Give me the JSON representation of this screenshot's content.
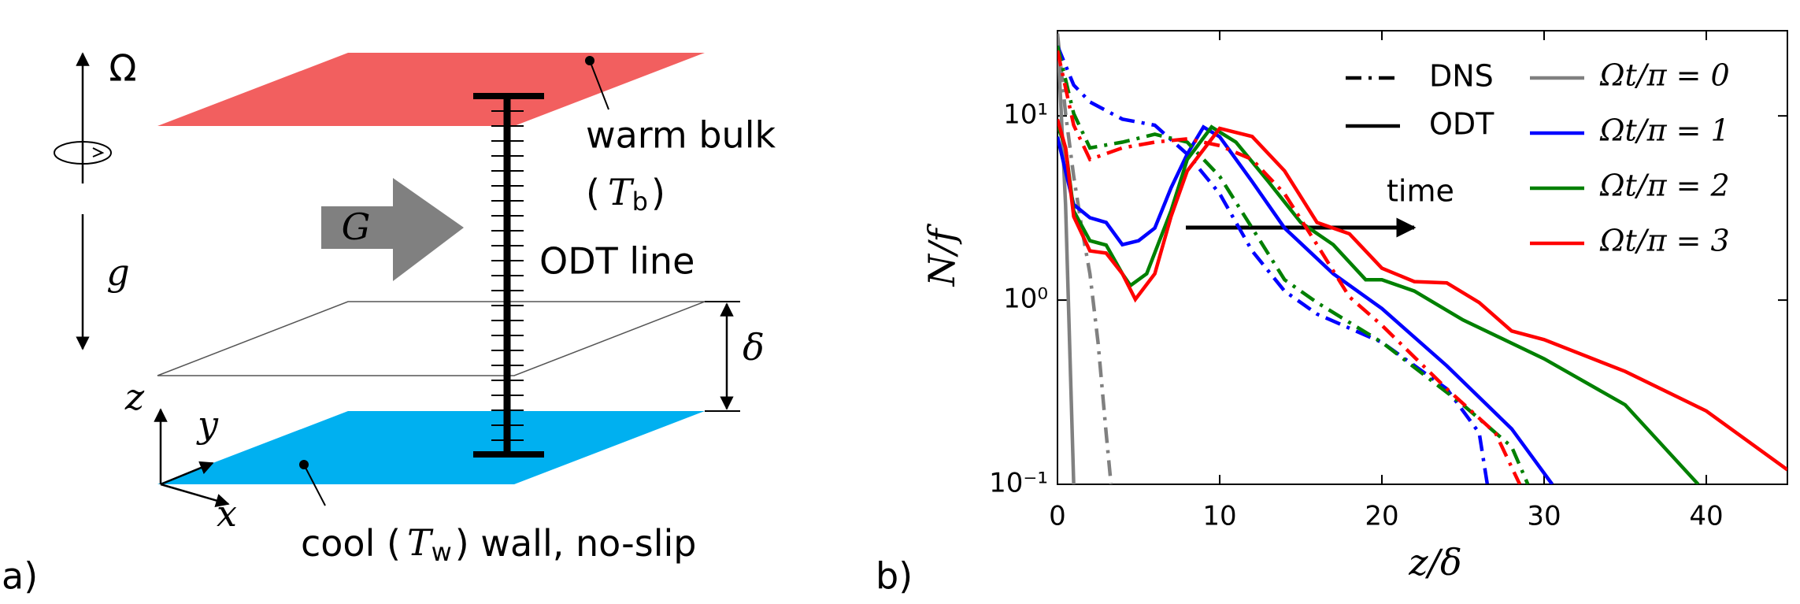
{
  "diagram": {
    "panel_label": "a)",
    "omega": "Ω",
    "gravity": "g",
    "forcing": "G",
    "delta": "δ",
    "axis_z": "z",
    "axis_y": "y",
    "axis_x": "x",
    "warm_label": "warm bulk",
    "warm_temp": [
      "(",
      "T",
      "b",
      ")"
    ],
    "odt_label": "ODT line",
    "cool_label": [
      "cool (",
      "T",
      "w",
      ") wall, no-slip"
    ]
  },
  "chart_data": {
    "type": "line",
    "panel_label": "b)",
    "xlabel": "z/δ",
    "ylabel": "N/f",
    "annotation": "time",
    "log_y": true,
    "xlim": [
      0,
      45
    ],
    "ylim": [
      0.1,
      29
    ],
    "xticks": [
      0,
      10,
      20,
      30,
      40
    ],
    "yticks": [
      {
        "value": 0.1,
        "label": "10⁻¹"
      },
      {
        "value": 1,
        "label": "10⁰"
      },
      {
        "value": 10,
        "label": "10¹"
      }
    ],
    "legend": {
      "styles": [
        {
          "label": "DNS",
          "style": "dashdot"
        },
        {
          "label": "ODT",
          "style": "solid"
        }
      ],
      "colors": [
        {
          "label": "Ωt/π = 0",
          "color": "#808080"
        },
        {
          "label": "Ωt/π = 1",
          "color": "#0000ff"
        },
        {
          "label": "Ωt/π = 2",
          "color": "#008000"
        },
        {
          "label": "Ωt/π = 3",
          "color": "#ff0000"
        }
      ]
    },
    "series": [
      {
        "style": "dashdot",
        "color": "#808080",
        "x": [
          0,
          0.5,
          1,
          1.5,
          2,
          2.5,
          3,
          3.3
        ],
        "values": [
          28,
          10.3,
          4.7,
          2.46,
          1.39,
          0.59,
          0.19,
          0.1
        ]
      },
      {
        "style": "solid",
        "color": "#808080",
        "x": [
          0,
          0.5,
          1
        ],
        "values": [
          28,
          3.27,
          0.1
        ]
      },
      {
        "style": "dashdot",
        "color": "#0000ff",
        "x": [
          0,
          1,
          2,
          4,
          6,
          8,
          10,
          12,
          14,
          16,
          20,
          24,
          26,
          26.5
        ],
        "values": [
          24,
          14.7,
          11.9,
          9.6,
          8.9,
          6.2,
          3.78,
          1.85,
          1.12,
          0.84,
          0.59,
          0.33,
          0.19,
          0.1
        ]
      },
      {
        "style": "solid",
        "color": "#0000ff",
        "x": [
          0,
          0.5,
          1,
          2,
          3,
          4,
          5,
          6,
          7,
          8,
          9,
          10,
          12,
          14,
          17,
          20,
          24,
          28,
          30.5
        ],
        "values": [
          7.7,
          5.0,
          3.3,
          2.8,
          2.64,
          2.0,
          2.1,
          2.46,
          4.06,
          6.2,
          8.7,
          7.7,
          4.4,
          2.46,
          1.39,
          0.9,
          0.44,
          0.2,
          0.1
        ]
      },
      {
        "style": "dashdot",
        "color": "#008000",
        "x": [
          0,
          1,
          2,
          4,
          6,
          8,
          10,
          12,
          14,
          16,
          20,
          25,
          28,
          29
        ],
        "values": [
          24,
          10.3,
          6.7,
          7.2,
          7.95,
          7.2,
          4.7,
          2.46,
          1.29,
          0.97,
          0.59,
          0.27,
          0.16,
          0.1
        ]
      },
      {
        "style": "solid",
        "color": "#008000",
        "x": [
          0,
          0.5,
          1,
          2,
          3,
          4,
          4.5,
          5.5,
          7,
          8,
          9.5,
          11,
          13,
          15,
          17,
          19,
          20,
          22,
          25,
          30,
          35,
          39.5
        ],
        "values": [
          8.9,
          6.7,
          3.05,
          2.1,
          1.99,
          1.39,
          1.2,
          1.39,
          3.05,
          5.8,
          8.7,
          7.2,
          4.4,
          2.64,
          2.0,
          1.29,
          1.29,
          1.12,
          0.78,
          0.48,
          0.27,
          0.1
        ]
      },
      {
        "style": "dashdot",
        "color": "#ff0000",
        "x": [
          0,
          1,
          2,
          4,
          6,
          8,
          10,
          12,
          14,
          16,
          18,
          20,
          24,
          27,
          28.5
        ],
        "values": [
          22.6,
          8.9,
          5.8,
          6.7,
          7.2,
          7.5,
          6.9,
          5.8,
          3.78,
          2.0,
          1.04,
          0.73,
          0.33,
          0.19,
          0.1
        ]
      },
      {
        "style": "solid",
        "color": "#ff0000",
        "x": [
          0,
          0.5,
          1,
          2,
          3,
          4,
          4.8,
          6,
          7,
          8,
          10,
          12,
          14,
          16,
          18,
          20,
          22,
          24,
          26,
          28,
          30,
          35,
          40,
          45
        ],
        "values": [
          9.58,
          6.7,
          2.84,
          1.85,
          1.8,
          1.39,
          1.01,
          1.39,
          2.84,
          5.03,
          8.55,
          7.73,
          5.03,
          2.64,
          2.29,
          1.49,
          1.26,
          1.24,
          0.97,
          0.68,
          0.61,
          0.41,
          0.25,
          0.12
        ]
      }
    ]
  }
}
